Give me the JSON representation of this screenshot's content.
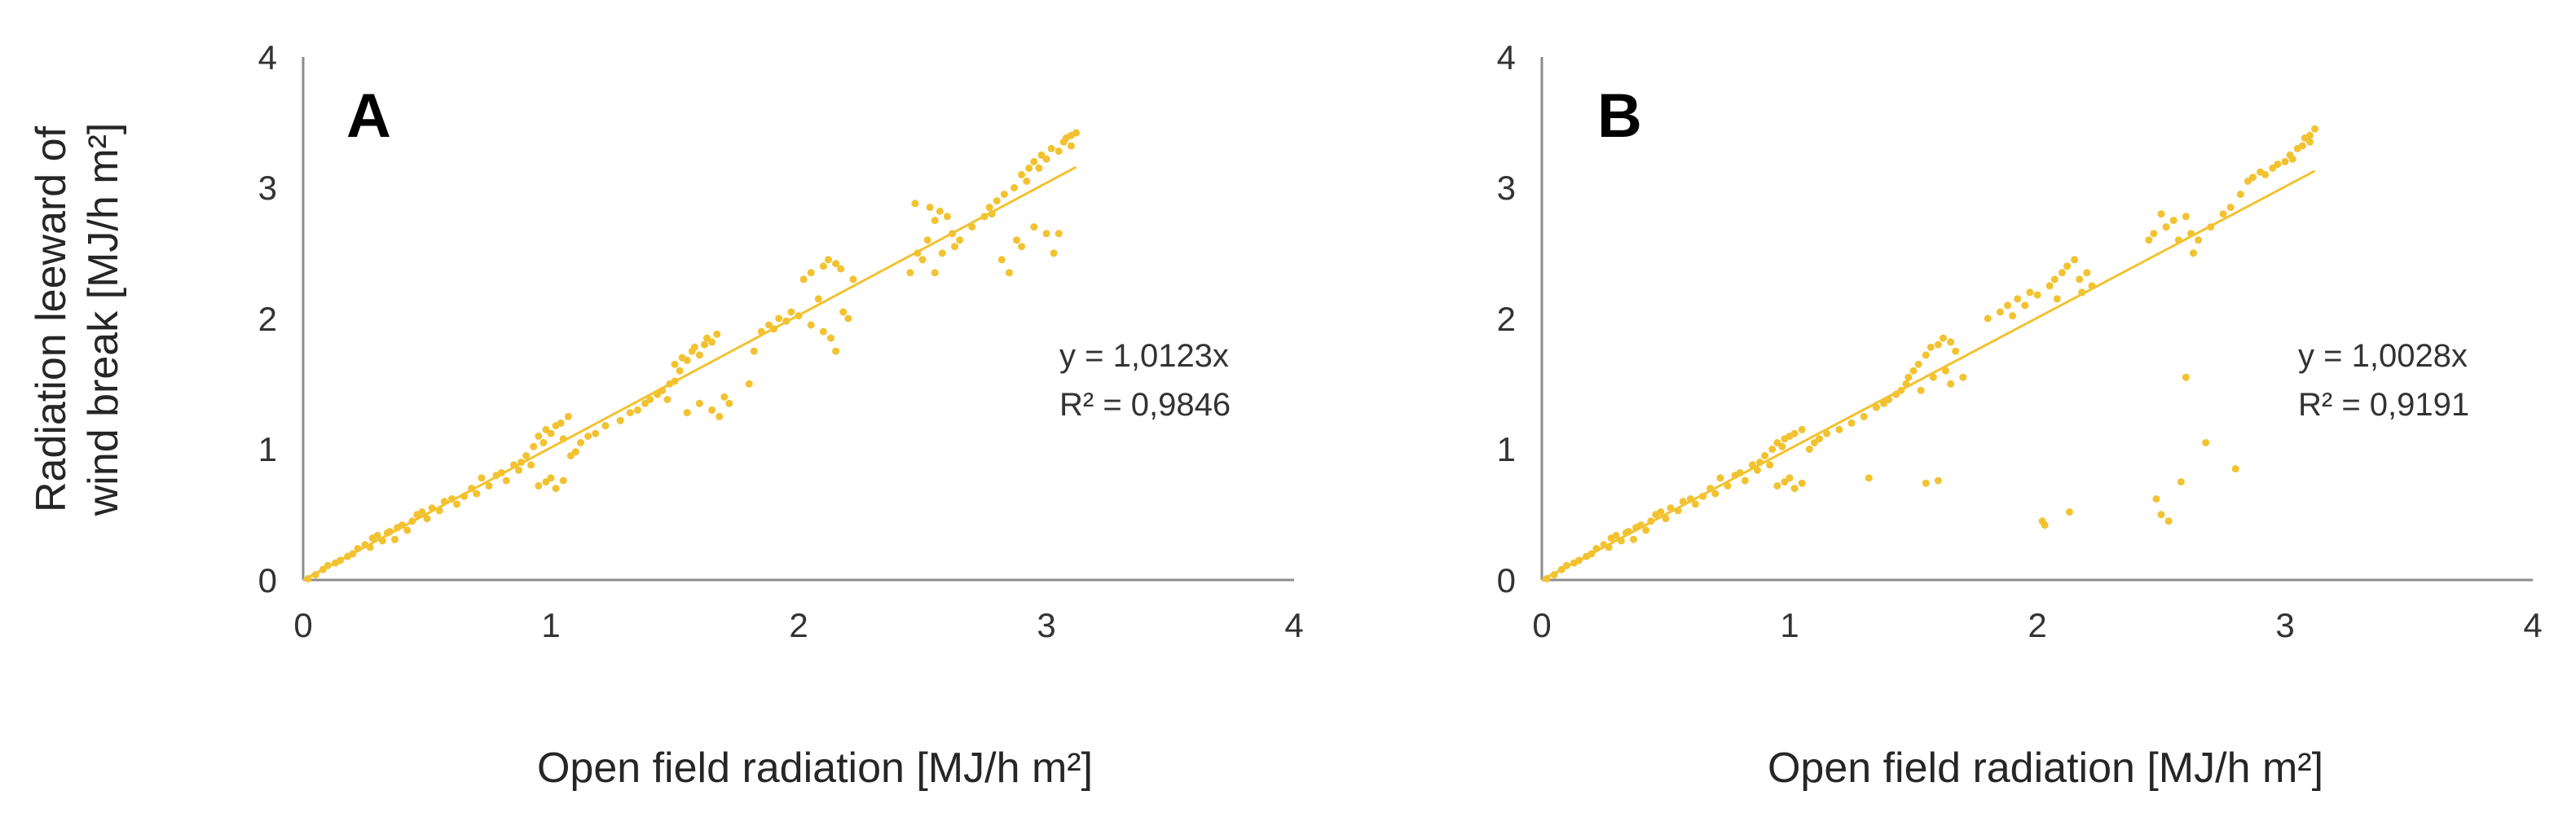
{
  "colors": {
    "points": "#f2c230",
    "trend": "#f2c230",
    "axis": "#8c8c8c",
    "text": "#262626"
  },
  "chart_data": [
    {
      "type": "scatter",
      "panel": "A",
      "xlabel": "Open field radiation [MJ/h m²]",
      "ylabel_lines": [
        "Radiation leeward of",
        "wind break [MJ/h m²]"
      ],
      "xlim": [
        0,
        4
      ],
      "ylim": [
        0,
        4
      ],
      "xticks": [
        "0",
        "1",
        "2",
        "3",
        "4"
      ],
      "yticks": [
        "0",
        "1",
        "2",
        "3",
        "4"
      ],
      "trendline": {
        "slope": 1.0123,
        "x_range": [
          0,
          3.12
        ]
      },
      "equation": "y = 1,0123x",
      "r2_label": "R² = 0,9846",
      "points": [
        [
          0.02,
          0.01
        ],
        [
          0.05,
          0.04
        ],
        [
          0.08,
          0.08
        ],
        [
          0.1,
          0.11
        ],
        [
          0.13,
          0.13
        ],
        [
          0.15,
          0.15
        ],
        [
          0.18,
          0.18
        ],
        [
          0.2,
          0.2
        ],
        [
          0.22,
          0.24
        ],
        [
          0.25,
          0.27
        ],
        [
          0.27,
          0.25
        ],
        [
          0.28,
          0.32
        ],
        [
          0.3,
          0.34
        ],
        [
          0.32,
          0.3
        ],
        [
          0.34,
          0.36
        ],
        [
          0.35,
          0.37
        ],
        [
          0.37,
          0.31
        ],
        [
          0.38,
          0.4
        ],
        [
          0.4,
          0.42
        ],
        [
          0.42,
          0.38
        ],
        [
          0.44,
          0.45
        ],
        [
          0.46,
          0.5
        ],
        [
          0.48,
          0.52
        ],
        [
          0.5,
          0.47
        ],
        [
          0.52,
          0.55
        ],
        [
          0.55,
          0.53
        ],
        [
          0.57,
          0.6
        ],
        [
          0.6,
          0.62
        ],
        [
          0.62,
          0.58
        ],
        [
          0.65,
          0.64
        ],
        [
          0.68,
          0.7
        ],
        [
          0.7,
          0.66
        ],
        [
          0.72,
          0.78
        ],
        [
          0.75,
          0.72
        ],
        [
          0.78,
          0.8
        ],
        [
          0.8,
          0.82
        ],
        [
          0.82,
          0.76
        ],
        [
          0.85,
          0.88
        ],
        [
          0.87,
          0.84
        ],
        [
          0.88,
          0.9
        ],
        [
          0.9,
          0.95
        ],
        [
          0.92,
          0.88
        ],
        [
          0.93,
          1.02
        ],
        [
          0.95,
          1.1
        ],
        [
          0.97,
          1.05
        ],
        [
          0.98,
          1.15
        ],
        [
          1.0,
          1.12
        ],
        [
          1.02,
          1.18
        ],
        [
          1.04,
          1.2
        ],
        [
          1.05,
          1.08
        ],
        [
          1.07,
          1.25
        ],
        [
          0.95,
          0.72
        ],
        [
          0.98,
          0.75
        ],
        [
          1.0,
          0.78
        ],
        [
          1.02,
          0.7
        ],
        [
          1.05,
          0.76
        ],
        [
          1.08,
          0.95
        ],
        [
          1.1,
          0.98
        ],
        [
          1.12,
          1.05
        ],
        [
          1.15,
          1.1
        ],
        [
          1.18,
          1.12
        ],
        [
          1.22,
          1.18
        ],
        [
          1.28,
          1.22
        ],
        [
          1.32,
          1.28
        ],
        [
          1.35,
          1.3
        ],
        [
          1.38,
          1.35
        ],
        [
          1.4,
          1.38
        ],
        [
          1.43,
          1.42
        ],
        [
          1.45,
          1.45
        ],
        [
          1.47,
          1.38
        ],
        [
          1.48,
          1.5
        ],
        [
          1.5,
          1.52
        ],
        [
          1.5,
          1.65
        ],
        [
          1.52,
          1.6
        ],
        [
          1.53,
          1.7
        ],
        [
          1.55,
          1.68
        ],
        [
          1.55,
          1.28
        ],
        [
          1.57,
          1.75
        ],
        [
          1.58,
          1.78
        ],
        [
          1.6,
          1.72
        ],
        [
          1.6,
          1.35
        ],
        [
          1.62,
          1.8
        ],
        [
          1.63,
          1.85
        ],
        [
          1.65,
          1.82
        ],
        [
          1.65,
          1.3
        ],
        [
          1.67,
          1.88
        ],
        [
          1.68,
          1.25
        ],
        [
          1.7,
          1.4
        ],
        [
          1.72,
          1.35
        ],
        [
          1.8,
          1.5
        ],
        [
          1.82,
          1.75
        ],
        [
          1.85,
          1.9
        ],
        [
          1.88,
          1.95
        ],
        [
          1.9,
          1.92
        ],
        [
          1.92,
          2.0
        ],
        [
          1.95,
          1.98
        ],
        [
          1.97,
          2.05
        ],
        [
          2.0,
          2.02
        ],
        [
          2.02,
          2.3
        ],
        [
          2.05,
          2.35
        ],
        [
          2.05,
          1.95
        ],
        [
          2.08,
          2.15
        ],
        [
          2.1,
          2.4
        ],
        [
          2.1,
          1.9
        ],
        [
          2.12,
          2.45
        ],
        [
          2.13,
          1.85
        ],
        [
          2.15,
          2.42
        ],
        [
          2.15,
          1.75
        ],
        [
          2.17,
          2.38
        ],
        [
          2.18,
          2.05
        ],
        [
          2.2,
          2.0
        ],
        [
          2.22,
          2.3
        ],
        [
          2.45,
          2.35
        ],
        [
          2.47,
          2.88
        ],
        [
          2.48,
          2.5
        ],
        [
          2.5,
          2.45
        ],
        [
          2.52,
          2.6
        ],
        [
          2.53,
          2.85
        ],
        [
          2.55,
          2.75
        ],
        [
          2.55,
          2.35
        ],
        [
          2.57,
          2.82
        ],
        [
          2.58,
          2.5
        ],
        [
          2.6,
          2.78
        ],
        [
          2.62,
          2.65
        ],
        [
          2.63,
          2.55
        ],
        [
          2.65,
          2.6
        ],
        [
          2.7,
          2.7
        ],
        [
          2.75,
          2.78
        ],
        [
          2.77,
          2.85
        ],
        [
          2.78,
          2.8
        ],
        [
          2.8,
          2.9
        ],
        [
          2.82,
          2.45
        ],
        [
          2.83,
          2.95
        ],
        [
          2.85,
          2.35
        ],
        [
          2.87,
          3.0
        ],
        [
          2.88,
          2.6
        ],
        [
          2.9,
          3.1
        ],
        [
          2.9,
          2.55
        ],
        [
          2.92,
          3.05
        ],
        [
          2.93,
          3.15
        ],
        [
          2.95,
          3.2
        ],
        [
          2.95,
          2.7
        ],
        [
          2.97,
          3.15
        ],
        [
          2.98,
          3.25
        ],
        [
          3.0,
          3.22
        ],
        [
          3.0,
          2.65
        ],
        [
          3.02,
          3.3
        ],
        [
          3.03,
          2.5
        ],
        [
          3.05,
          3.28
        ],
        [
          3.05,
          2.65
        ],
        [
          3.07,
          3.35
        ],
        [
          3.08,
          3.38
        ],
        [
          3.1,
          3.4
        ],
        [
          3.1,
          3.32
        ],
        [
          3.12,
          3.42
        ]
      ]
    },
    {
      "type": "scatter",
      "panel": "B",
      "xlabel": "Open field radiation [MJ/h m²]",
      "xlim": [
        0,
        4
      ],
      "ylim": [
        0,
        4
      ],
      "xticks": [
        "0",
        "1",
        "2",
        "3",
        "4"
      ],
      "yticks": [
        "0",
        "1",
        "2",
        "3",
        "4"
      ],
      "trendline": {
        "slope": 1.0028,
        "x_range": [
          0,
          3.12
        ]
      },
      "equation": "y = 1,0028x",
      "r2_label": "R² = 0,9191",
      "points": [
        [
          0.02,
          0.01
        ],
        [
          0.05,
          0.04
        ],
        [
          0.08,
          0.08
        ],
        [
          0.1,
          0.11
        ],
        [
          0.13,
          0.13
        ],
        [
          0.15,
          0.15
        ],
        [
          0.18,
          0.18
        ],
        [
          0.2,
          0.2
        ],
        [
          0.22,
          0.24
        ],
        [
          0.25,
          0.27
        ],
        [
          0.27,
          0.25
        ],
        [
          0.28,
          0.32
        ],
        [
          0.3,
          0.34
        ],
        [
          0.32,
          0.3
        ],
        [
          0.34,
          0.36
        ],
        [
          0.35,
          0.37
        ],
        [
          0.37,
          0.31
        ],
        [
          0.38,
          0.4
        ],
        [
          0.4,
          0.42
        ],
        [
          0.42,
          0.38
        ],
        [
          0.44,
          0.45
        ],
        [
          0.46,
          0.5
        ],
        [
          0.48,
          0.52
        ],
        [
          0.5,
          0.47
        ],
        [
          0.52,
          0.55
        ],
        [
          0.55,
          0.53
        ],
        [
          0.57,
          0.6
        ],
        [
          0.6,
          0.62
        ],
        [
          0.62,
          0.58
        ],
        [
          0.65,
          0.64
        ],
        [
          0.68,
          0.7
        ],
        [
          0.7,
          0.66
        ],
        [
          0.72,
          0.78
        ],
        [
          0.75,
          0.72
        ],
        [
          0.78,
          0.8
        ],
        [
          0.8,
          0.82
        ],
        [
          0.82,
          0.76
        ],
        [
          0.85,
          0.88
        ],
        [
          0.87,
          0.84
        ],
        [
          0.88,
          0.9
        ],
        [
          0.9,
          0.95
        ],
        [
          0.92,
          0.88
        ],
        [
          0.93,
          1.0
        ],
        [
          0.95,
          1.05
        ],
        [
          0.97,
          1.02
        ],
        [
          0.98,
          1.08
        ],
        [
          1.0,
          1.1
        ],
        [
          1.02,
          1.12
        ],
        [
          1.05,
          1.15
        ],
        [
          0.95,
          0.72
        ],
        [
          0.98,
          0.75
        ],
        [
          1.0,
          0.78
        ],
        [
          1.02,
          0.7
        ],
        [
          1.05,
          0.74
        ],
        [
          1.08,
          1.0
        ],
        [
          1.1,
          1.05
        ],
        [
          1.12,
          1.08
        ],
        [
          1.15,
          1.12
        ],
        [
          1.2,
          1.15
        ],
        [
          1.25,
          1.2
        ],
        [
          1.3,
          1.25
        ],
        [
          1.32,
          0.78
        ],
        [
          1.35,
          1.32
        ],
        [
          1.38,
          1.35
        ],
        [
          1.4,
          1.38
        ],
        [
          1.43,
          1.42
        ],
        [
          1.45,
          1.45
        ],
        [
          1.47,
          1.5
        ],
        [
          1.48,
          1.55
        ],
        [
          1.5,
          1.6
        ],
        [
          1.52,
          1.65
        ],
        [
          1.53,
          1.45
        ],
        [
          1.55,
          1.72
        ],
        [
          1.55,
          0.74
        ],
        [
          1.57,
          1.78
        ],
        [
          1.58,
          1.55
        ],
        [
          1.6,
          1.8
        ],
        [
          1.6,
          0.76
        ],
        [
          1.62,
          1.85
        ],
        [
          1.63,
          1.6
        ],
        [
          1.65,
          1.82
        ],
        [
          1.65,
          1.5
        ],
        [
          1.67,
          1.75
        ],
        [
          1.7,
          1.55
        ],
        [
          1.8,
          2.0
        ],
        [
          1.85,
          2.05
        ],
        [
          1.88,
          2.1
        ],
        [
          1.9,
          2.02
        ],
        [
          1.92,
          2.15
        ],
        [
          1.95,
          2.1
        ],
        [
          1.97,
          2.2
        ],
        [
          2.0,
          2.18
        ],
        [
          2.02,
          0.45
        ],
        [
          2.03,
          0.42
        ],
        [
          2.05,
          2.25
        ],
        [
          2.07,
          2.3
        ],
        [
          2.08,
          2.15
        ],
        [
          2.1,
          2.35
        ],
        [
          2.12,
          2.4
        ],
        [
          2.13,
          0.52
        ],
        [
          2.15,
          2.45
        ],
        [
          2.17,
          2.3
        ],
        [
          2.18,
          2.2
        ],
        [
          2.2,
          2.35
        ],
        [
          2.22,
          2.25
        ],
        [
          2.45,
          2.6
        ],
        [
          2.47,
          2.65
        ],
        [
          2.48,
          0.62
        ],
        [
          2.5,
          2.8
        ],
        [
          2.5,
          0.5
        ],
        [
          2.52,
          2.7
        ],
        [
          2.53,
          0.45
        ],
        [
          2.55,
          2.75
        ],
        [
          2.57,
          2.6
        ],
        [
          2.58,
          0.75
        ],
        [
          2.6,
          2.78
        ],
        [
          2.6,
          1.55
        ],
        [
          2.62,
          2.65
        ],
        [
          2.63,
          2.5
        ],
        [
          2.65,
          2.6
        ],
        [
          2.68,
          1.05
        ],
        [
          2.7,
          2.7
        ],
        [
          2.75,
          2.8
        ],
        [
          2.78,
          2.85
        ],
        [
          2.8,
          0.85
        ],
        [
          2.82,
          2.95
        ],
        [
          2.85,
          3.05
        ],
        [
          2.87,
          3.08
        ],
        [
          2.9,
          3.12
        ],
        [
          2.92,
          3.1
        ],
        [
          2.95,
          3.15
        ],
        [
          2.97,
          3.18
        ],
        [
          3.0,
          3.2
        ],
        [
          3.02,
          3.25
        ],
        [
          3.03,
          3.22
        ],
        [
          3.05,
          3.3
        ],
        [
          3.07,
          3.32
        ],
        [
          3.08,
          3.38
        ],
        [
          3.1,
          3.4
        ],
        [
          3.1,
          3.35
        ],
        [
          3.12,
          3.45
        ]
      ]
    }
  ]
}
